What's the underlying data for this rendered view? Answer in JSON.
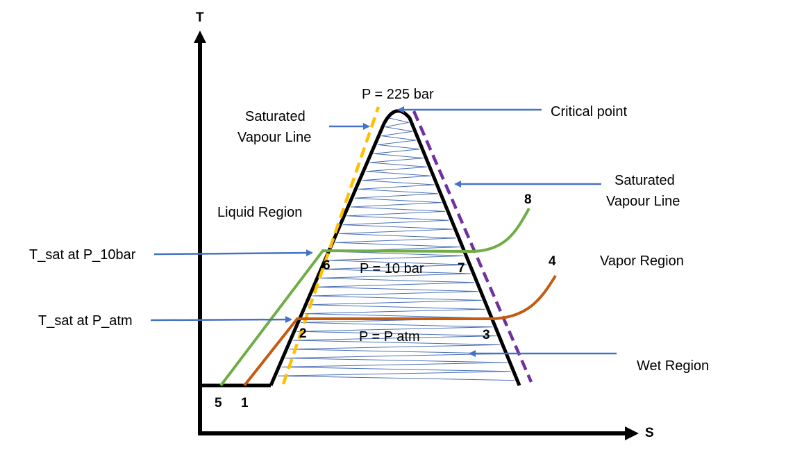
{
  "axes": {
    "y_label": "T",
    "x_label": "S"
  },
  "pressures": {
    "critical": "P = 225 bar",
    "p10": "P = 10 bar",
    "patm": "P = P atm"
  },
  "callouts": {
    "sat_vapour_left": [
      "Saturated",
      "Vapour Line"
    ],
    "critical_point": "Critical point",
    "sat_vapour_right": [
      "Saturated",
      "Vapour Line"
    ],
    "liquid_region": "Liquid Region",
    "vapor_region": "Vapor Region",
    "wet_region": "Wet Region",
    "tsat_10bar": "T_sat at P_10bar",
    "tsat_atm": "T_sat at P_atm"
  },
  "points": {
    "p1": "1",
    "p2": "2",
    "p3": "3",
    "p4": "4",
    "p5": "5",
    "p6": "6",
    "p7": "7",
    "p8": "8"
  },
  "colors": {
    "dome": "#000000",
    "wet_coil": "#4a6fb5",
    "p10_line": "#70ad47",
    "patm_line": "#c55a11",
    "sat_left_dashed": "#ffc000",
    "sat_right_dashed": "#7030a0",
    "arrows": "#4472c4"
  }
}
